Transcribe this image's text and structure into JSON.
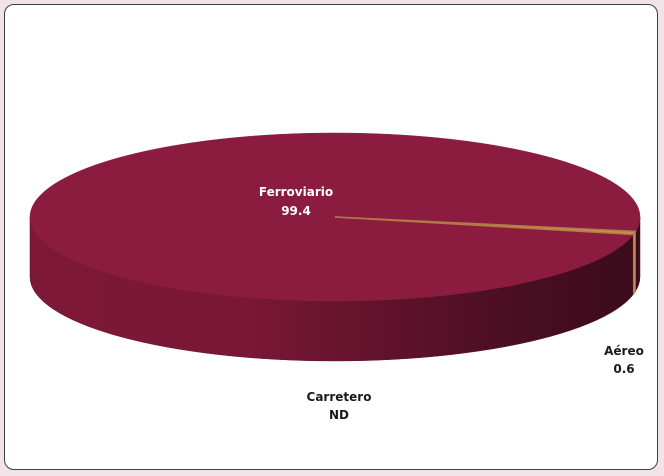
{
  "chart_data": {
    "type": "pie",
    "three_d": true,
    "categories": [
      "Ferroviario",
      "Aéreo",
      "Carretero"
    ],
    "values": [
      99.4,
      0.6,
      null
    ],
    "value_labels": [
      "99.4",
      "0.6",
      "ND"
    ],
    "colors": {
      "Ferroviario": "#8c1c3f",
      "Aéreo": "#c8915a",
      "Carretero": "#8c1c3f",
      "ferroviario_label_text": "#ffffff",
      "outer_label_text": "#1a1a1a"
    },
    "legend": "none"
  },
  "labels": {
    "ferroviario_name": "Ferroviario",
    "ferroviario_value": "99.4",
    "aereo_name": "Aéreo",
    "aereo_value": "0.6",
    "carretero_name": "Carretero",
    "carretero_value": "ND"
  }
}
